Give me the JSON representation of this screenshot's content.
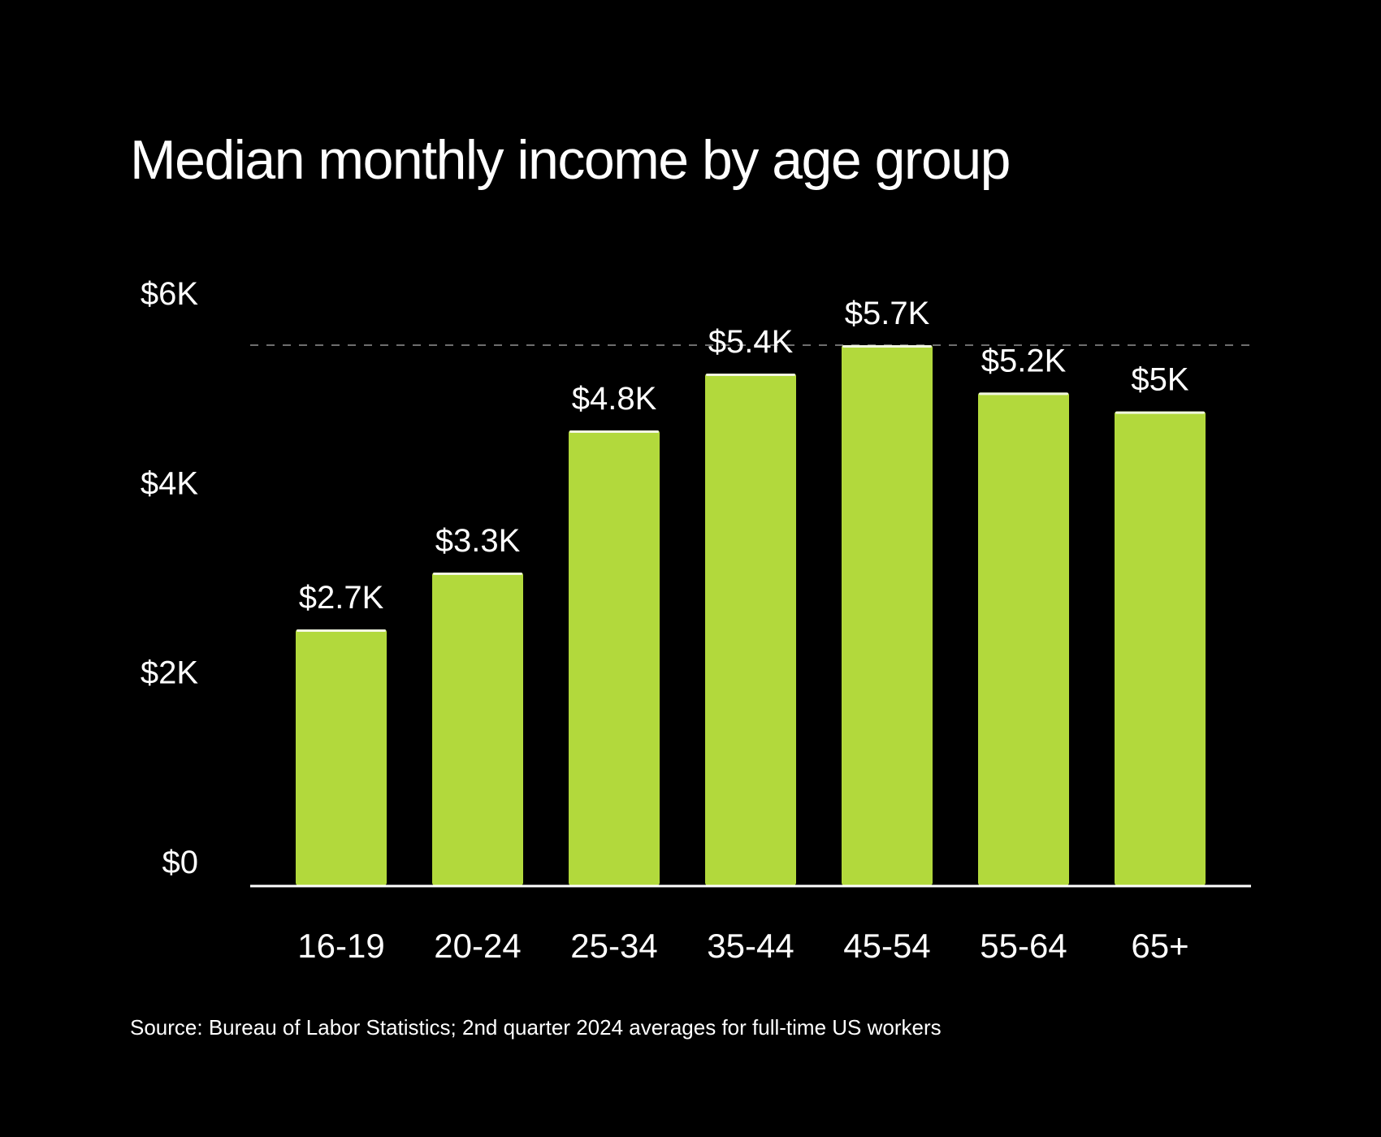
{
  "chart_data": {
    "type": "bar",
    "title": "Median monthly income by age group",
    "categories": [
      "16-19",
      "20-24",
      "25-34",
      "35-44",
      "45-54",
      "55-64",
      "65+"
    ],
    "values": [
      2.7,
      3.3,
      4.8,
      5.4,
      5.7,
      5.2,
      5.0
    ],
    "value_labels": [
      "$2.7K",
      "$3.3K",
      "$4.8K",
      "$5.4K",
      "$5.7K",
      "$5.2K",
      "$5K"
    ],
    "y_ticks": [
      {
        "value": 0,
        "label": "$0"
      },
      {
        "value": 2,
        "label": "$2K"
      },
      {
        "value": 4,
        "label": "$4K"
      },
      {
        "value": 6,
        "label": "$6K"
      }
    ],
    "ylim": [
      0,
      6
    ],
    "value_unit": "thousands of US dollars per month",
    "reference_line": {
      "value": 5.7,
      "style": "dashed"
    },
    "xlabel": "",
    "ylabel": "",
    "grid": false,
    "colors": {
      "background": "#000000",
      "bar": "#b2d93c",
      "bar_top": "#f2f7e0",
      "text": "#ffffff",
      "axis": "#ffffff",
      "reference_line": "#6e6e6e"
    }
  },
  "source": "Source: Bureau of Labor Statistics; 2nd quarter 2024 averages for full-time US workers"
}
